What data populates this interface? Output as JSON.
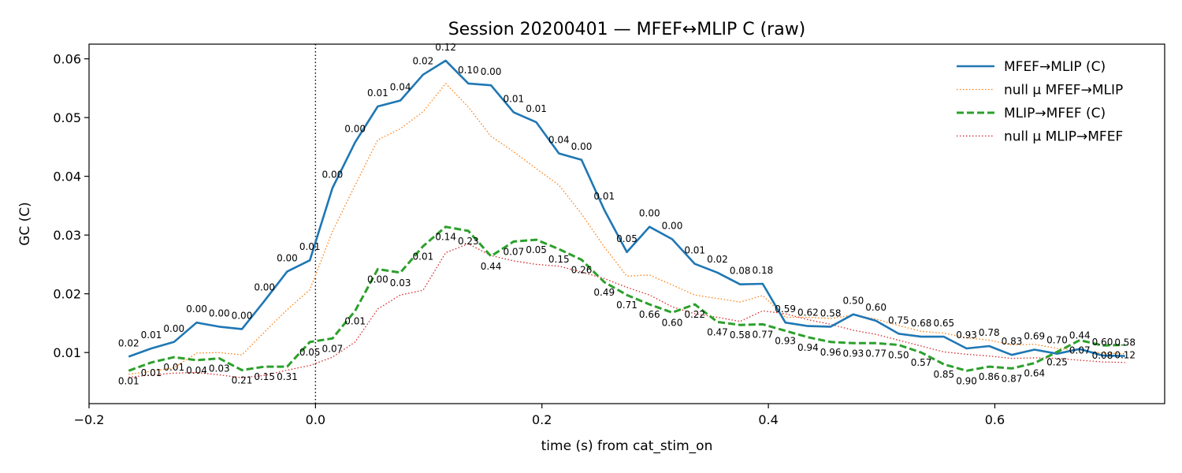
{
  "chart_data": {
    "type": "line",
    "title": "Session 20200401 — MFEF↔MLIP C (raw)",
    "xlabel": "time (s) from cat_stim_on",
    "ylabel": "GC (C)",
    "xlim": [
      -0.2,
      0.75
    ],
    "ylim": [
      0.0013,
      0.0625
    ],
    "xticks": [
      -0.2,
      0.0,
      0.2,
      0.4,
      0.6
    ],
    "xtick_labels": [
      "−0.2",
      "0.0",
      "0.2",
      "0.4",
      "0.6"
    ],
    "yticks": [
      0.01,
      0.02,
      0.03,
      0.04,
      0.05,
      0.06
    ],
    "ytick_labels": [
      "0.01",
      "0.02",
      "0.03",
      "0.04",
      "0.05",
      "0.06"
    ],
    "vline_x": 0.0,
    "grid": false,
    "legend_position": "top-right",
    "x": [
      -0.165,
      -0.145,
      -0.125,
      -0.105,
      -0.085,
      -0.065,
      -0.045,
      -0.025,
      -0.005,
      0.015,
      0.035,
      0.055,
      0.075,
      0.095,
      0.115,
      0.135,
      0.155,
      0.175,
      0.195,
      0.215,
      0.235,
      0.255,
      0.275,
      0.295,
      0.315,
      0.335,
      0.355,
      0.375,
      0.395,
      0.415,
      0.435,
      0.455,
      0.475,
      0.495,
      0.515,
      0.535,
      0.555,
      0.575,
      0.595,
      0.615,
      0.635,
      0.655,
      0.675,
      0.695,
      0.715
    ],
    "series": [
      {
        "name": "MFEF→MLIP (C)",
        "color": "#1f77b4",
        "style": "solid",
        "values": [
          0.0093,
          0.0107,
          0.0118,
          0.0151,
          0.0144,
          0.014,
          0.0188,
          0.0238,
          0.0257,
          0.038,
          0.0458,
          0.0519,
          0.0529,
          0.0573,
          0.0597,
          0.0558,
          0.0555,
          0.0509,
          0.0492,
          0.0439,
          0.0428,
          0.0343,
          0.0271,
          0.0314,
          0.0293,
          0.0251,
          0.0236,
          0.0216,
          0.0217,
          0.0151,
          0.0145,
          0.0144,
          0.0165,
          0.0154,
          0.0132,
          0.0127,
          0.0127,
          0.0107,
          0.0111,
          0.0096,
          0.0105,
          0.0098,
          0.0106,
          0.0095,
          0.0094
        ],
        "p_values": [
          "0.02",
          "0.01",
          "0.00",
          "0.00",
          "0.00",
          "0.00",
          "0.00",
          "0.00",
          "0.01",
          "0.00",
          "0.00",
          "0.01",
          "0.04",
          "0.02",
          "0.12",
          "0.10",
          "0.00",
          "0.01",
          "0.01",
          "0.04",
          "0.00",
          "0.01",
          "0.05",
          "0.00",
          "0.00",
          "0.01",
          "0.02",
          "0.08",
          "0.18",
          "0.59",
          "0.62",
          "0.58",
          "0.50",
          "0.60",
          "0.75",
          "0.68",
          "0.65",
          "0.93",
          "0.78",
          "0.83",
          "0.69",
          "0.70",
          "0.44",
          "0.60",
          "0.58"
        ]
      },
      {
        "name": "null μ MFEF→MLIP",
        "color": "#ff7f0e",
        "style": "dotted",
        "values": [
          0.0063,
          0.0068,
          0.0074,
          0.0099,
          0.01,
          0.0096,
          0.0135,
          0.0173,
          0.0207,
          0.0306,
          0.0385,
          0.0462,
          0.0481,
          0.051,
          0.0558,
          0.0518,
          0.0468,
          0.0442,
          0.0413,
          0.0385,
          0.0336,
          0.028,
          0.023,
          0.0232,
          0.0215,
          0.0198,
          0.0192,
          0.0186,
          0.0197,
          0.016,
          0.016,
          0.0158,
          0.0164,
          0.0157,
          0.0146,
          0.0136,
          0.0133,
          0.0125,
          0.0121,
          0.0113,
          0.0114,
          0.0107,
          0.0104,
          0.0099,
          0.0098
        ]
      },
      {
        "name": "MLIP→MFEF (C)",
        "color": "#2ca02c",
        "style": "dashed",
        "values": [
          0.0069,
          0.0083,
          0.0092,
          0.0087,
          0.009,
          0.007,
          0.0076,
          0.0076,
          0.0118,
          0.0124,
          0.0171,
          0.0242,
          0.0236,
          0.0281,
          0.0314,
          0.0307,
          0.0264,
          0.0289,
          0.0292,
          0.0276,
          0.0258,
          0.022,
          0.0198,
          0.0182,
          0.0168,
          0.0182,
          0.0152,
          0.0147,
          0.0148,
          0.0137,
          0.0126,
          0.0118,
          0.0116,
          0.0116,
          0.0113,
          0.01,
          0.008,
          0.0069,
          0.0076,
          0.0073,
          0.0082,
          0.0101,
          0.0121,
          0.0112,
          0.0113
        ],
        "p_values": [
          "0.01",
          "0.01",
          "0.01",
          "0.04",
          "0.03",
          "0.21",
          "0.15",
          "0.31",
          "0.05",
          "0.07",
          "0.01",
          "0.00",
          "0.03",
          "0.01",
          "0.14",
          "0.23",
          "0.44",
          "0.07",
          "0.05",
          "0.15",
          "0.26",
          "0.49",
          "0.71",
          "0.66",
          "0.60",
          "0.22",
          "0.47",
          "0.58",
          "0.77",
          "0.93",
          "0.94",
          "0.96",
          "0.93",
          "0.77",
          "0.50",
          "0.57",
          "0.85",
          "0.90",
          "0.86",
          "0.87",
          "0.64",
          "0.25",
          "0.07",
          "0.08",
          "0.12"
        ]
      },
      {
        "name": "null μ MLIP→MFEF",
        "color": "#d62728",
        "style": "dotted",
        "values": [
          0.0058,
          0.0062,
          0.0065,
          0.0066,
          0.0062,
          0.0057,
          0.0061,
          0.007,
          0.0078,
          0.0092,
          0.0118,
          0.0174,
          0.0198,
          0.0206,
          0.027,
          0.0285,
          0.0265,
          0.0256,
          0.025,
          0.0247,
          0.0237,
          0.0226,
          0.0211,
          0.0198,
          0.0178,
          0.0166,
          0.016,
          0.0153,
          0.0171,
          0.0166,
          0.0156,
          0.0148,
          0.0138,
          0.0131,
          0.0121,
          0.0111,
          0.0101,
          0.0097,
          0.0094,
          0.009,
          0.0091,
          0.009,
          0.0087,
          0.0084,
          0.0083
        ]
      }
    ]
  }
}
